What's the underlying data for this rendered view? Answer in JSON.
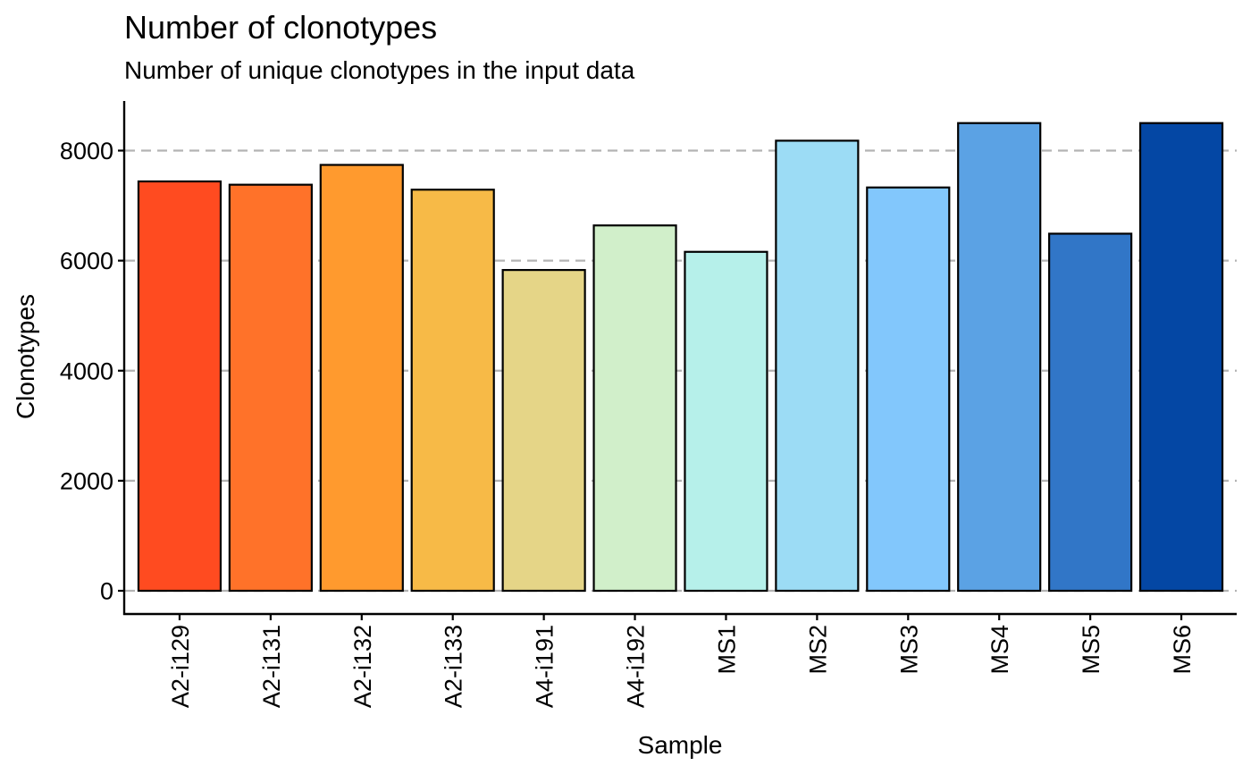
{
  "chart_data": {
    "type": "bar",
    "title": "Number of clonotypes",
    "subtitle": "Number of unique clonotypes in the input data",
    "xlabel": "Sample",
    "ylabel": "Clonotypes",
    "categories": [
      "A2-i129",
      "A2-i131",
      "A2-i132",
      "A2-i133",
      "A4-i191",
      "A4-i192",
      "MS1",
      "MS2",
      "MS3",
      "MS4",
      "MS5",
      "MS6"
    ],
    "values": [
      7440,
      7380,
      7740,
      7290,
      5830,
      6640,
      6160,
      8180,
      7330,
      8500,
      6490,
      8500
    ],
    "colors": [
      "#FF4B20",
      "#FF7229",
      "#FF9A2E",
      "#F7BA47",
      "#E5D587",
      "#D1EFCA",
      "#B6F0EA",
      "#9CDCF5",
      "#82C7FC",
      "#5BA2E4",
      "#3176C7",
      "#0447A4"
    ],
    "ylim": [
      0,
      8900
    ],
    "yticks": [
      0,
      2000,
      4000,
      6000,
      8000
    ],
    "grid": "dashed horizontal",
    "legend": "none"
  }
}
